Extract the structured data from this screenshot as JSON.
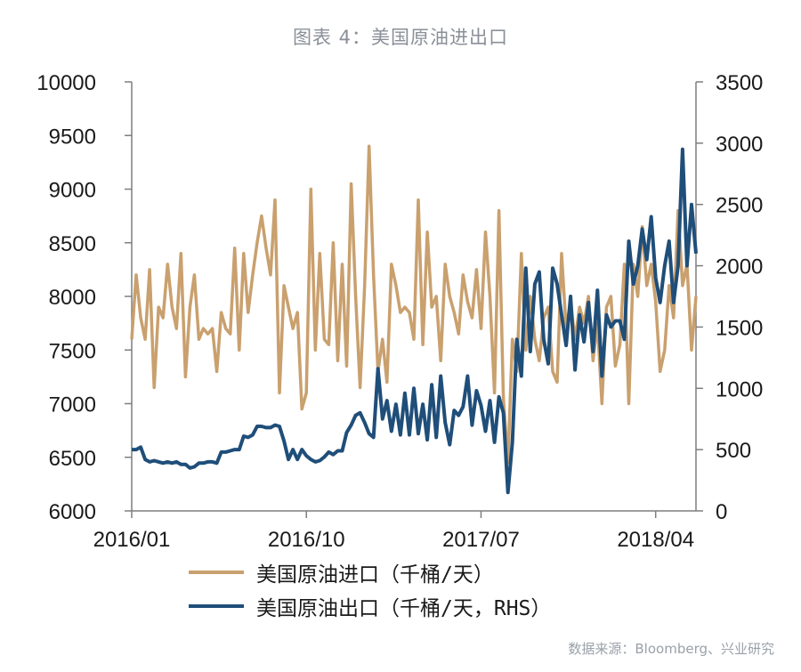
{
  "title": "图表 4：美国原油进出口",
  "source": "数据来源：Bloomberg、兴业研究",
  "colors": {
    "imports": "#c9a06e",
    "exports": "#1f4e79",
    "axis": "#7f7f7f"
  },
  "chart_data": {
    "type": "line",
    "x_tick_labels": [
      "2016/01",
      "2016/10",
      "2017/07",
      "2018/04"
    ],
    "left_axis": {
      "ylim": [
        6000,
        10000
      ],
      "ticks": [
        6000,
        6500,
        7000,
        7500,
        8000,
        8500,
        9000,
        9500,
        10000
      ]
    },
    "right_axis": {
      "ylim": [
        0,
        3500
      ],
      "ticks": [
        0,
        500,
        1000,
        1500,
        2000,
        2500,
        3000,
        3500
      ]
    },
    "x_range_weeks": [
      0,
      126
    ],
    "legend_position": "bottom",
    "series": [
      {
        "name": "美国原油进口（千桶/天）",
        "axis": "left",
        "weeks": [
          0,
          1,
          2,
          3,
          4,
          5,
          6,
          7,
          8,
          9,
          10,
          11,
          12,
          13,
          14,
          15,
          16,
          17,
          18,
          19,
          20,
          21,
          22,
          23,
          24,
          25,
          26,
          27,
          28,
          29,
          30,
          31,
          32,
          33,
          34,
          35,
          36,
          37,
          38,
          39,
          40,
          41,
          42,
          43,
          44,
          45,
          46,
          47,
          48,
          49,
          50,
          51,
          52,
          53,
          54,
          55,
          56,
          57,
          58,
          59,
          60,
          61,
          62,
          63,
          64,
          65,
          66,
          67,
          68,
          69,
          70,
          71,
          72,
          73,
          74,
          75,
          76,
          77,
          78,
          79,
          80,
          81,
          82,
          83,
          84,
          85,
          86,
          87,
          88,
          89,
          90,
          91,
          92,
          93,
          94,
          95,
          96,
          97,
          98,
          99,
          100,
          101,
          102,
          103,
          104,
          105,
          106,
          107,
          108,
          109,
          110,
          111,
          112,
          113,
          114,
          115,
          116,
          117,
          118,
          119,
          120,
          121,
          122,
          123,
          124,
          125,
          126
        ],
        "values": [
          7600,
          8200,
          7800,
          7600,
          8250,
          7150,
          7900,
          7800,
          8300,
          7900,
          7700,
          8400,
          7250,
          7900,
          8200,
          7600,
          7700,
          7650,
          7700,
          7300,
          7850,
          7700,
          7650,
          8450,
          7500,
          8400,
          7850,
          8200,
          8500,
          8750,
          8450,
          8200,
          8900,
          7100,
          8100,
          7900,
          7700,
          7850,
          6950,
          7100,
          9000,
          7500,
          8400,
          7600,
          7550,
          8500,
          7400,
          8300,
          7350,
          9050,
          8000,
          7150,
          8100,
          9400,
          8200,
          7300,
          7600,
          7200,
          8300,
          8100,
          7850,
          7900,
          7850,
          7600,
          8900,
          7550,
          8600,
          7900,
          8000,
          7400,
          8300,
          8000,
          7850,
          7650,
          8200,
          7950,
          7800,
          8250,
          7700,
          8600,
          8000,
          7100,
          8800,
          7050,
          6450,
          7600,
          7300,
          8400,
          7500,
          8000,
          7600,
          7400,
          7800,
          7900,
          7300,
          7200,
          8400,
          7700,
          7950,
          7600,
          7900,
          7750,
          8000,
          7400,
          7750,
          7000,
          7900,
          8000,
          7350,
          7550,
          8300,
          7000,
          8300,
          8000,
          8650,
          8100,
          8300,
          7950,
          7300,
          7500,
          8100,
          7800,
          8800,
          8100,
          8300,
          7500,
          8000
        ]
      },
      {
        "name": "美国原油出口（千桶/天，RHS）",
        "axis": "right",
        "weeks": [
          0,
          1,
          2,
          3,
          4,
          5,
          6,
          7,
          8,
          9,
          10,
          11,
          12,
          13,
          14,
          15,
          16,
          17,
          18,
          19,
          20,
          21,
          22,
          23,
          24,
          25,
          26,
          27,
          28,
          29,
          30,
          31,
          32,
          33,
          34,
          35,
          36,
          37,
          38,
          39,
          40,
          41,
          42,
          43,
          44,
          45,
          46,
          47,
          48,
          49,
          50,
          51,
          52,
          53,
          54,
          55,
          56,
          57,
          58,
          59,
          60,
          61,
          62,
          63,
          64,
          65,
          66,
          67,
          68,
          69,
          70,
          71,
          72,
          73,
          74,
          75,
          76,
          77,
          78,
          79,
          80,
          81,
          82,
          83,
          84,
          85,
          86,
          87,
          88,
          89,
          90,
          91,
          92,
          93,
          94,
          95,
          96,
          97,
          98,
          99,
          100,
          101,
          102,
          103,
          104,
          105,
          106,
          107,
          108,
          109,
          110,
          111,
          112,
          113,
          114,
          115,
          116,
          117,
          118,
          119,
          120,
          121,
          122,
          123,
          124,
          125,
          126
        ],
        "values": [
          500,
          500,
          520,
          420,
          400,
          410,
          400,
          390,
          400,
          390,
          400,
          380,
          380,
          350,
          360,
          390,
          390,
          400,
          400,
          390,
          480,
          480,
          490,
          500,
          500,
          610,
          600,
          620,
          690,
          690,
          680,
          680,
          700,
          690,
          570,
          420,
          500,
          420,
          500,
          450,
          420,
          400,
          410,
          440,
          480,
          460,
          490,
          490,
          640,
          700,
          780,
          800,
          720,
          630,
          600,
          1160,
          750,
          900,
          650,
          870,
          620,
          960,
          620,
          1000,
          630,
          870,
          580,
          1030,
          600,
          1100,
          720,
          540,
          820,
          780,
          850,
          1100,
          700,
          980,
          860,
          650,
          900,
          560,
          930,
          800,
          150,
          560,
          1400,
          1100,
          1980,
          1300,
          1850,
          1950,
          1400,
          1200,
          1980,
          1850,
          1600,
          1350,
          1750,
          1150,
          1600,
          1380,
          1700,
          1300,
          1800,
          1100,
          1600,
          1500,
          1550,
          1550,
          1400,
          2200,
          1850,
          2000,
          2300,
          2050,
          2400,
          1900,
          1700,
          2000,
          2200,
          1700,
          2000,
          2950,
          2000,
          2500,
          2100
        ]
      }
    ]
  }
}
